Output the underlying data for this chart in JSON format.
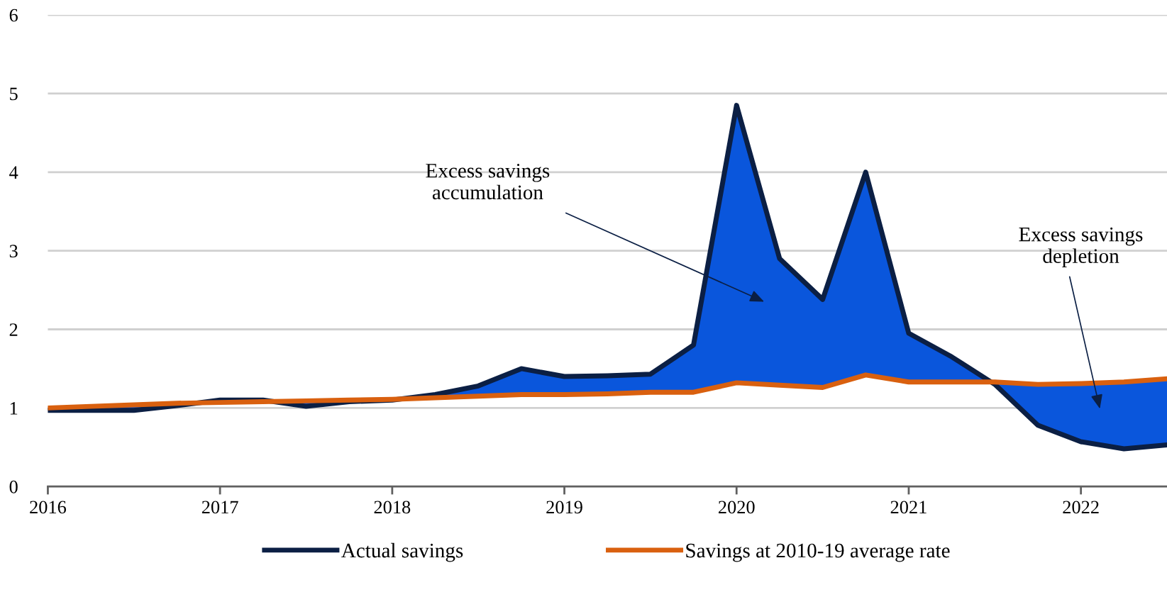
{
  "chart_data": {
    "type": "line",
    "x": [
      2016,
      2016.25,
      2016.5,
      2016.75,
      2017,
      2017.25,
      2017.5,
      2017.75,
      2018,
      2018.25,
      2018.5,
      2018.75,
      2019,
      2019.25,
      2019.5,
      2019.75,
      2020,
      2020.25,
      2020.5,
      2020.75,
      2021,
      2021.25,
      2021.5,
      2021.75,
      2022,
      2022.25,
      2022.5
    ],
    "series": [
      {
        "name": "Actual savings",
        "color": "#0b1f44",
        "values": [
          0.97,
          0.97,
          0.97,
          1.03,
          1.1,
          1.1,
          1.02,
          1.08,
          1.1,
          1.17,
          1.28,
          1.5,
          1.4,
          1.41,
          1.43,
          1.8,
          4.85,
          2.9,
          2.38,
          4.0,
          1.95,
          1.65,
          1.3,
          0.78,
          0.57,
          0.48,
          0.53
        ],
        "lower": [
          1.0,
          1.02,
          1.04,
          1.06,
          1.07,
          1.08,
          1.09,
          1.1,
          1.11,
          1.13,
          1.15,
          1.17,
          1.17,
          1.18,
          1.2,
          1.2,
          1.32,
          1.29,
          1.26,
          1.42,
          1.33,
          1.33,
          1.33,
          1.3,
          1.31,
          1.33,
          1.37
        ],
        "upper": [
          0.97,
          0.97,
          0.97,
          1.03,
          1.1,
          1.1,
          1.02,
          1.08,
          1.1,
          1.17,
          1.28,
          1.5,
          1.4,
          1.41,
          1.43,
          1.8,
          4.85,
          2.9,
          2.38,
          4.0,
          1.95,
          1.65,
          1.3,
          0.78,
          0.57,
          0.48,
          0.53
        ]
      },
      {
        "name": "Savings at 2010-19 average rate",
        "color": "#d9600f",
        "values": [
          1.0,
          1.02,
          1.04,
          1.06,
          1.07,
          1.08,
          1.09,
          1.1,
          1.11,
          1.13,
          1.15,
          1.17,
          1.17,
          1.18,
          1.2,
          1.2,
          1.32,
          1.29,
          1.26,
          1.42,
          1.33,
          1.33,
          1.33,
          1.3,
          1.31,
          1.33,
          1.37
        ]
      }
    ],
    "annotations": [
      "Excess savings\naccumulation",
      "Excess savings\ndepletion"
    ],
    "xlim": [
      2016,
      2022.5
    ],
    "xticks": [
      2016,
      2017,
      2018,
      2019,
      2020,
      2021,
      2022
    ],
    "ylim": [
      0,
      6
    ],
    "yticks": [
      0,
      1,
      2,
      3,
      4,
      5,
      6
    ],
    "grid": "y",
    "legend": "bottom",
    "line_style": "solid",
    "marker": "none"
  }
}
